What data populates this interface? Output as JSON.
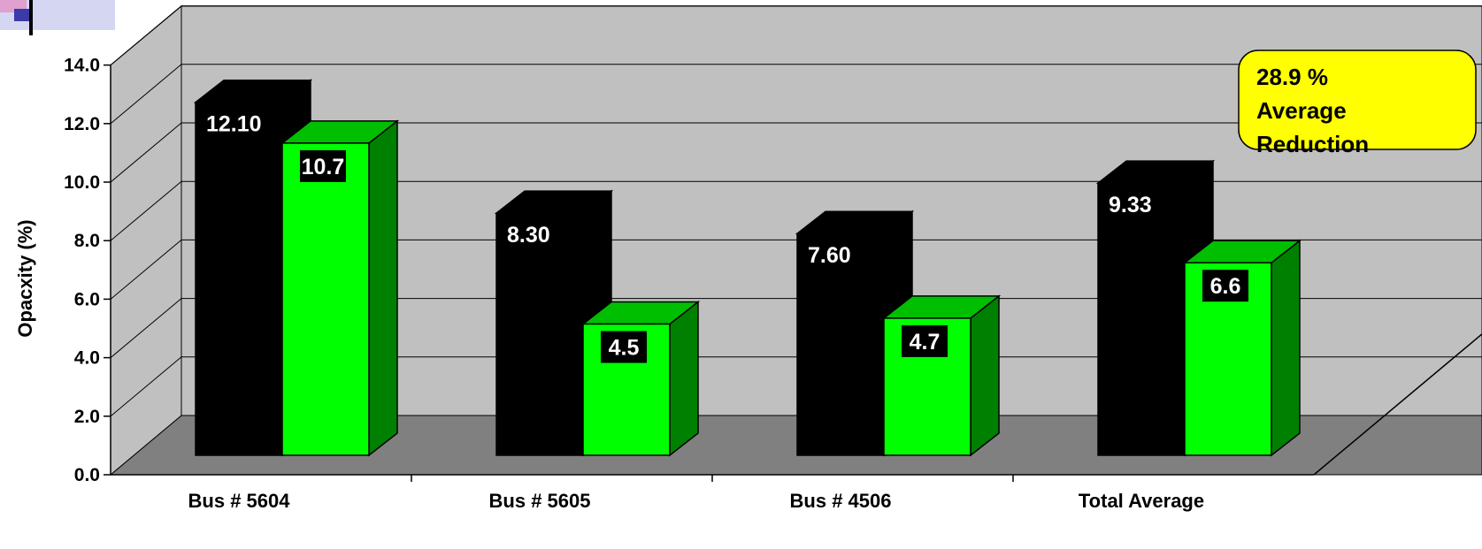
{
  "chart_data": {
    "type": "bar",
    "categories": [
      "Bus # 5604",
      "Bus # 5605",
      "Bus # 4506",
      "Total Average"
    ],
    "series": [
      {
        "values": [
          12.1,
          8.3,
          7.6,
          9.33
        ],
        "labels": [
          "12.10",
          "8.30",
          "7.60",
          "9.33"
        ],
        "color": "#000000"
      },
      {
        "values": [
          10.7,
          4.5,
          4.7,
          6.6
        ],
        "labels": [
          "10.7",
          "4.5",
          "4.7",
          "6.6"
        ],
        "color": "#00ff00"
      }
    ],
    "ylabel": "Opacxity (%)",
    "ylim": [
      0,
      14
    ],
    "yticks": [
      "0.0",
      "2.0",
      "4.0",
      "6.0",
      "8.0",
      "10.0",
      "12.0",
      "14.0"
    ],
    "grid": true,
    "wall_color": "#c0c0c0",
    "floor_color": "#808080",
    "callout": {
      "lines": [
        "28.9 %",
        "Average",
        "Reduction"
      ],
      "color": "#ffff00"
    }
  },
  "logo_colors": [
    "#b0b4e8",
    "#3a3aa8",
    "#e0a0d0"
  ]
}
